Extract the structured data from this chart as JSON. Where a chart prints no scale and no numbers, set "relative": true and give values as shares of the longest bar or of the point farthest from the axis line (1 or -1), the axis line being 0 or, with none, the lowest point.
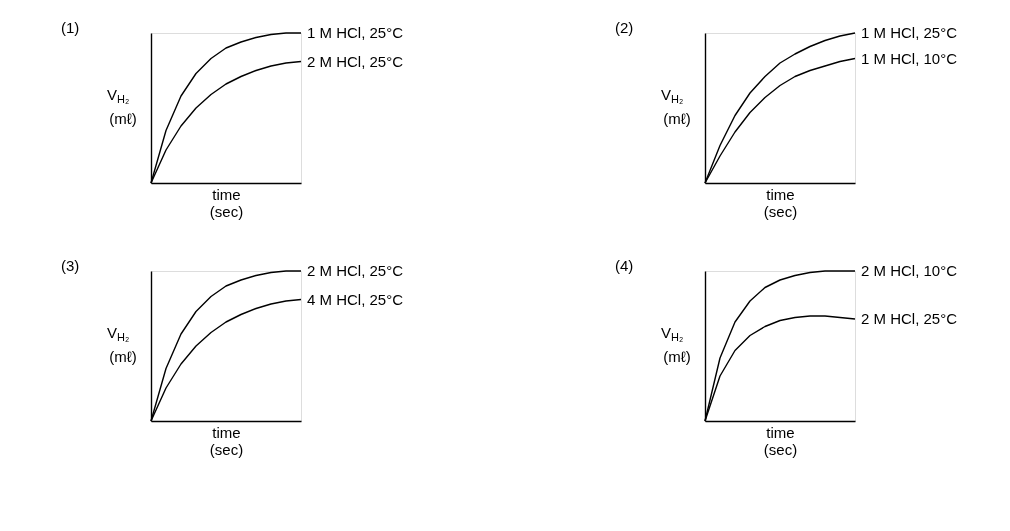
{
  "chart_data": [
    {
      "type": "line",
      "title": "(1)",
      "xlabel": "time (sec)",
      "ylabel": "V$_{H₂}$ (mℓ)",
      "relative": true,
      "tick_labels": false,
      "categories": [
        null,
        null,
        null,
        null,
        null,
        null,
        null,
        null,
        null,
        null,
        null
      ],
      "series": [
        {
          "name": "1 M HCl, 25°C",
          "color": "#000000",
          "values": [
            0,
            0.35,
            0.58,
            0.73,
            0.83,
            0.9,
            0.94,
            0.97,
            0.99,
            1.0,
            1.0
          ]
        },
        {
          "name": "2 M HCl, 25°C",
          "color": "#000000",
          "values": [
            0,
            0.22,
            0.38,
            0.5,
            0.59,
            0.66,
            0.71,
            0.75,
            0.78,
            0.8,
            0.81
          ]
        }
      ]
    },
    {
      "type": "line",
      "title": "(2)",
      "xlabel": "time (sec)",
      "ylabel": "V$_{H₂}$ (mℓ)",
      "relative": true,
      "tick_labels": false,
      "categories": [
        null,
        null,
        null,
        null,
        null,
        null,
        null,
        null,
        null,
        null,
        null
      ],
      "series": [
        {
          "name": "1 M HCl, 25°C",
          "color": "#000000",
          "values": [
            0,
            0.25,
            0.45,
            0.6,
            0.71,
            0.8,
            0.86,
            0.91,
            0.95,
            0.98,
            1.0
          ]
        },
        {
          "name": "1 M HCl, 10°C",
          "color": "#000000",
          "values": [
            0,
            0.18,
            0.34,
            0.47,
            0.57,
            0.65,
            0.71,
            0.75,
            0.78,
            0.81,
            0.83
          ]
        }
      ]
    },
    {
      "type": "line",
      "title": "(3)",
      "xlabel": "time (sec)",
      "ylabel": "V$_{H₂}$ (mℓ)",
      "relative": true,
      "tick_labels": false,
      "categories": [
        null,
        null,
        null,
        null,
        null,
        null,
        null,
        null,
        null,
        null,
        null
      ],
      "series": [
        {
          "name": "2 M HCl, 25°C",
          "color": "#000000",
          "values": [
            0,
            0.35,
            0.58,
            0.73,
            0.83,
            0.9,
            0.94,
            0.97,
            0.99,
            1.0,
            1.0
          ]
        },
        {
          "name": "4 M HCl, 25°C",
          "color": "#000000",
          "values": [
            0,
            0.22,
            0.38,
            0.5,
            0.59,
            0.66,
            0.71,
            0.75,
            0.78,
            0.8,
            0.81
          ]
        }
      ]
    },
    {
      "type": "line",
      "title": "(4)",
      "xlabel": "time (sec)",
      "ylabel": "V$_{H₂}$ (mℓ)",
      "relative": true,
      "tick_labels": false,
      "categories": [
        null,
        null,
        null,
        null,
        null,
        null,
        null,
        null,
        null,
        null,
        null
      ],
      "series": [
        {
          "name": "2 M HCl, 10°C",
          "color": "#000000",
          "values": [
            0,
            0.42,
            0.66,
            0.8,
            0.89,
            0.94,
            0.97,
            0.99,
            1.0,
            1.0,
            1.0
          ]
        },
        {
          "name": "2 M HCl, 25°C",
          "color": "#000000",
          "values": [
            0,
            0.3,
            0.47,
            0.57,
            0.63,
            0.67,
            0.69,
            0.7,
            0.7,
            0.69,
            0.68
          ]
        }
      ]
    }
  ]
}
